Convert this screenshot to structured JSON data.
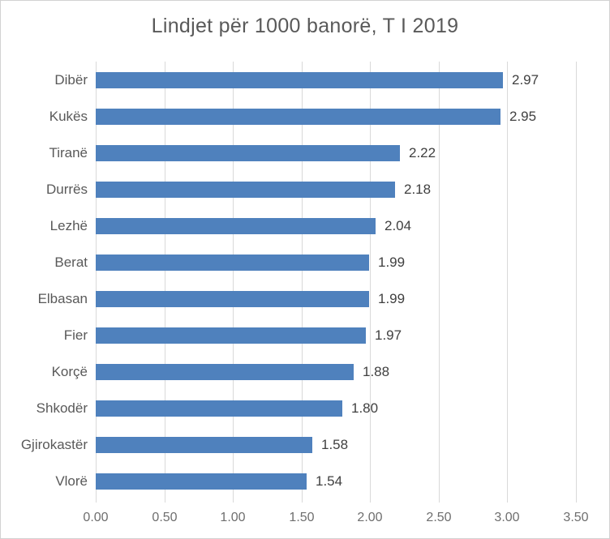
{
  "window": {
    "background": "#ffffff",
    "border_color": "#d2d2d2"
  },
  "chart_data": {
    "type": "bar",
    "orientation": "horizontal",
    "title": "Lindjet për 1000 banorë, T I 2019",
    "categories": [
      "Dibër",
      "Kukës",
      "Tiranë",
      "Durrës",
      "Lezhë",
      "Berat",
      "Elbasan",
      "Fier",
      "Korçë",
      "Shkodër",
      "Gjirokastër",
      "Vlorë"
    ],
    "values": [
      2.97,
      2.95,
      2.22,
      2.18,
      2.04,
      1.99,
      1.99,
      1.97,
      1.88,
      1.8,
      1.58,
      1.54
    ],
    "value_labels": [
      "2.97",
      "2.95",
      "2.22",
      "2.18",
      "2.04",
      "1.99",
      "1.99",
      "1.97",
      "1.88",
      "1.80",
      "1.58",
      "1.54"
    ],
    "xlabel": "",
    "ylabel": "",
    "xlim": [
      0,
      3.5
    ],
    "xticks": [
      "0.00",
      "0.50",
      "1.00",
      "1.50",
      "2.00",
      "2.50",
      "3.00",
      "3.50"
    ],
    "grid": true,
    "gridline_color": "#d9d9d9",
    "bar_color": "#4f81bd",
    "title_color": "#595959",
    "category_label_color": "#595959",
    "value_label_color": "#404040",
    "tick_label_color": "#6e6e6e",
    "legend_position": "none"
  }
}
